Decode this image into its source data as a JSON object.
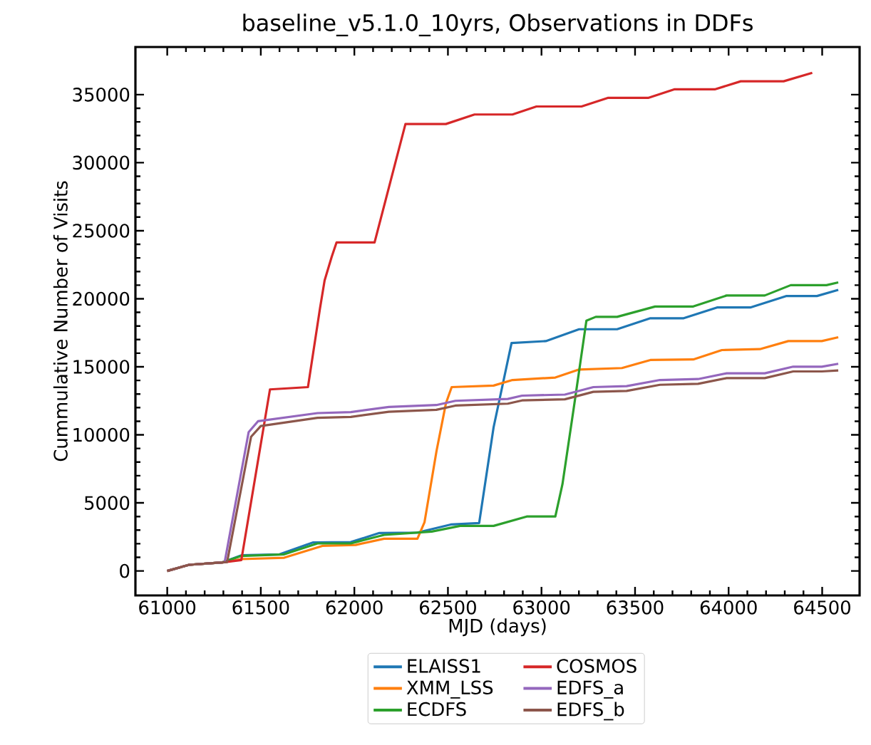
{
  "chart_data": {
    "type": "line",
    "title": "baseline_v5.1.0_10yrs, Observations in DDFs",
    "xlabel": "MJD (days)",
    "ylabel": "Cummulative Number of Visits",
    "xlim": [
      60830,
      64700
    ],
    "ylim": [
      -1800,
      38500
    ],
    "xticks": [
      61000,
      61500,
      62000,
      62500,
      63000,
      63500,
      64000,
      64500
    ],
    "yticks": [
      0,
      5000,
      10000,
      15000,
      20000,
      25000,
      30000,
      35000
    ],
    "legend": "bottom",
    "series": [
      {
        "name": "ELAISS1",
        "color": "#1f77b4",
        "x": [
          61000,
          61117,
          61295,
          61396,
          61600,
          61778,
          61981,
          62134,
          62337,
          62515,
          62667,
          62744,
          62840,
          63023,
          63201,
          63404,
          63582,
          63760,
          63938,
          64116,
          64307,
          64472,
          64586
        ],
        "values": [
          0,
          450,
          630,
          1150,
          1220,
          2090,
          2120,
          2790,
          2820,
          3410,
          3520,
          10550,
          16750,
          16890,
          17760,
          17760,
          18570,
          18570,
          19360,
          19360,
          20200,
          20200,
          20650
        ]
      },
      {
        "name": "XMM_LSS",
        "color": "#ff7f0e",
        "x": [
          61000,
          61117,
          61295,
          61396,
          61625,
          61829,
          62007,
          62159,
          62337,
          62375,
          62439,
          62489,
          62520,
          62744,
          62845,
          63074,
          63201,
          63430,
          63582,
          63811,
          63964,
          64167,
          64319,
          64498,
          64586
        ],
        "values": [
          0,
          450,
          630,
          870,
          970,
          1840,
          1910,
          2370,
          2370,
          3590,
          8810,
          12300,
          13510,
          13620,
          14030,
          14210,
          14800,
          14910,
          15500,
          15540,
          16230,
          16300,
          16890,
          16890,
          17170
        ]
      },
      {
        "name": "ECDFS",
        "color": "#2ca02c",
        "x": [
          61000,
          61117,
          61295,
          61396,
          61625,
          61803,
          61981,
          62159,
          62413,
          62565,
          62744,
          62921,
          63074,
          63112,
          63176,
          63240,
          63290,
          63404,
          63607,
          63811,
          63989,
          64193,
          64332,
          64523,
          64586
        ],
        "values": [
          0,
          450,
          630,
          1100,
          1220,
          2020,
          2020,
          2650,
          2890,
          3310,
          3310,
          4000,
          4000,
          6370,
          12300,
          18390,
          18670,
          18670,
          19430,
          19430,
          20240,
          20240,
          21000,
          21000,
          21200
        ]
      },
      {
        "name": "COSMOS",
        "color": "#d62728",
        "x": [
          61000,
          61117,
          61295,
          61396,
          61549,
          61752,
          61816,
          61841,
          61879,
          61905,
          62108,
          62273,
          62489,
          62642,
          62845,
          62973,
          63214,
          63354,
          63570,
          63709,
          63926,
          64065,
          64294,
          64447
        ],
        "values": [
          0,
          450,
          630,
          800,
          13340,
          13510,
          19260,
          21350,
          23090,
          24140,
          24140,
          32840,
          32840,
          33540,
          33540,
          34130,
          34130,
          34760,
          34760,
          35390,
          35390,
          35980,
          35980,
          36600
        ]
      },
      {
        "name": "EDFS_a",
        "color": "#9467bd",
        "x": [
          61000,
          61117,
          61295,
          61307,
          61435,
          61485,
          61803,
          61981,
          62184,
          62438,
          62540,
          62820,
          62896,
          63125,
          63277,
          63455,
          63633,
          63837,
          63989,
          64193,
          64345,
          64498,
          64586
        ],
        "values": [
          0,
          450,
          630,
          650,
          10200,
          11000,
          11600,
          11670,
          12050,
          12190,
          12500,
          12640,
          12880,
          12960,
          13510,
          13580,
          14030,
          14100,
          14520,
          14520,
          15010,
          15010,
          15220
        ]
      },
      {
        "name": "EDFS_b",
        "color": "#8c564b",
        "x": [
          61000,
          61117,
          61295,
          61320,
          61448,
          61500,
          61803,
          61981,
          62184,
          62438,
          62540,
          62820,
          62896,
          63125,
          63277,
          63455,
          63633,
          63837,
          63989,
          64193,
          64345,
          64498,
          64586
        ],
        "values": [
          0,
          450,
          630,
          650,
          9860,
          10650,
          11250,
          11320,
          11700,
          11840,
          12150,
          12290,
          12530,
          12610,
          13160,
          13230,
          13680,
          13750,
          14170,
          14170,
          14660,
          14660,
          14730
        ]
      }
    ]
  }
}
